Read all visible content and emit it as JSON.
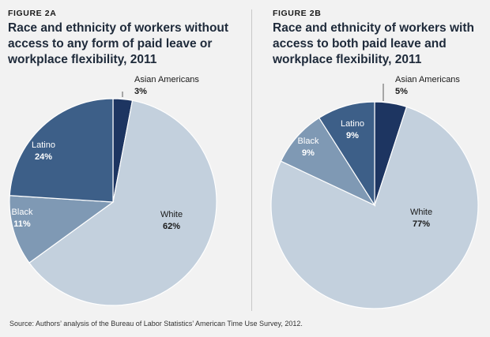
{
  "chart_data": [
    {
      "type": "pie",
      "figure_label": "FIGURE 2A",
      "title": "Race and ethnicity of workers without access to any form of paid leave or workplace flexibility, 2011",
      "slices": [
        {
          "label": "Asian Americans",
          "value": 3,
          "value_label": "3%",
          "color": "#1d3561"
        },
        {
          "label": "White",
          "value": 62,
          "value_label": "62%",
          "color": "#c3d0dd"
        },
        {
          "label": "Black",
          "value": 11,
          "value_label": "11%",
          "color": "#7f99b4"
        },
        {
          "label": "Latino",
          "value": 24,
          "value_label": "24%",
          "color": "#3d5f88"
        }
      ]
    },
    {
      "type": "pie",
      "figure_label": "FIGURE 2B",
      "title": "Race and ethnicity of workers with access to both paid leave and workplace flexibility, 2011",
      "slices": [
        {
          "label": "Asian Americans",
          "value": 5,
          "value_label": "5%",
          "color": "#1d3561"
        },
        {
          "label": "White",
          "value": 77,
          "value_label": "77%",
          "color": "#c3d0dd"
        },
        {
          "label": "Black",
          "value": 9,
          "value_label": "9%",
          "color": "#7f99b4"
        },
        {
          "label": "Latino",
          "value": 9,
          "value_label": "9%",
          "color": "#3d5f88"
        }
      ]
    }
  ],
  "source": "Source: Authors’ analysis of the Bureau of Labor Statistics’ American Time Use Survey, 2012."
}
